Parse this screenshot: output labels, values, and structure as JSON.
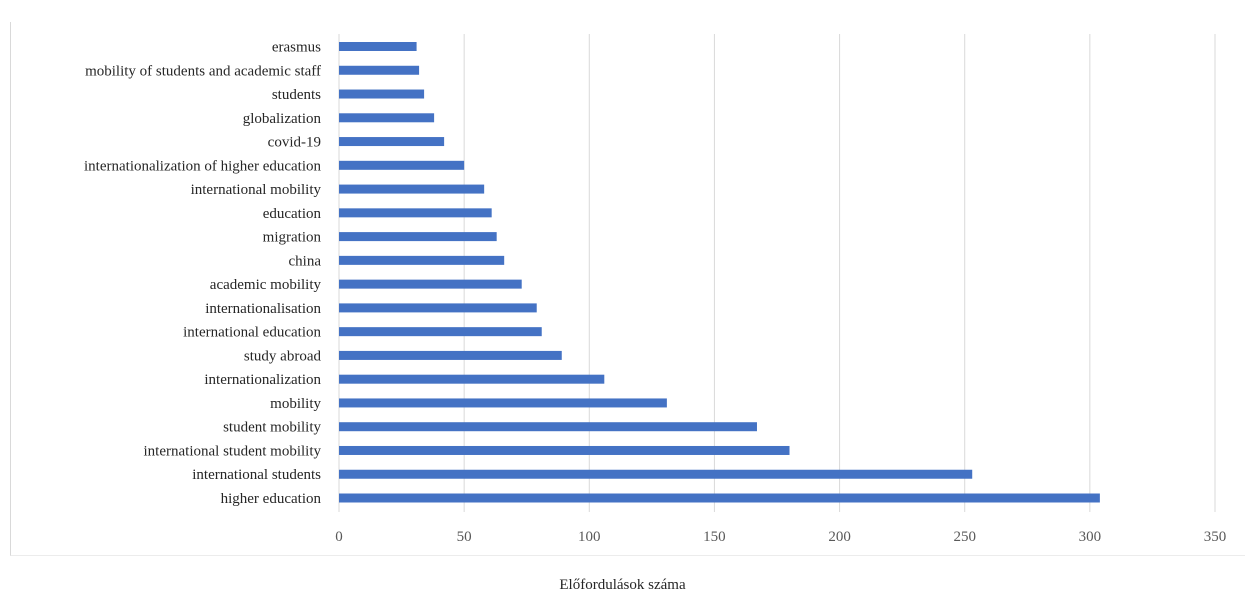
{
  "chart_data": {
    "type": "bar",
    "orientation": "horizontal",
    "categories": [
      "higher education",
      "international students",
      "international student mobility",
      "student mobility",
      "mobility",
      "internationalization",
      "study abroad",
      "international education",
      "internationalisation",
      "academic mobility",
      "china",
      "migration",
      "education",
      "international mobility",
      "internationalization of higher education",
      "covid-19",
      "globalization",
      "students",
      "mobility of students and academic staff",
      "erasmus"
    ],
    "values": [
      304,
      253,
      180,
      167,
      131,
      106,
      89,
      81,
      79,
      73,
      66,
      63,
      61,
      58,
      50,
      42,
      38,
      34,
      32,
      31
    ],
    "xlabel": "Előfordulások száma",
    "ylabel": "",
    "xlim": [
      0,
      350
    ],
    "xticks": [
      "0",
      "50",
      "100",
      "150",
      "200",
      "250",
      "300",
      "350"
    ],
    "grid": "vertical",
    "bar_color": "#4472c4",
    "grid_color": "#d9d9d9"
  }
}
